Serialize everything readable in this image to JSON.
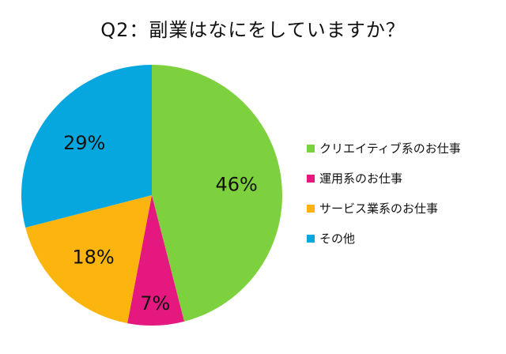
{
  "chart_data": {
    "type": "pie",
    "title": "Q2：副業はなにをしていますか？",
    "categories": [
      "クリエイティブ系のお仕事",
      "運用系のお仕事",
      "サービス業系のお仕事",
      "その他"
    ],
    "values": [
      46,
      7,
      18,
      29
    ],
    "data_labels": [
      "46%",
      "7%",
      "18%",
      "29%"
    ],
    "colors": [
      "#7ed13e",
      "#e5187f",
      "#fbb50e",
      "#06a7de"
    ],
    "legend_position": "right",
    "start_angle": "12 o'clock, clockwise"
  }
}
